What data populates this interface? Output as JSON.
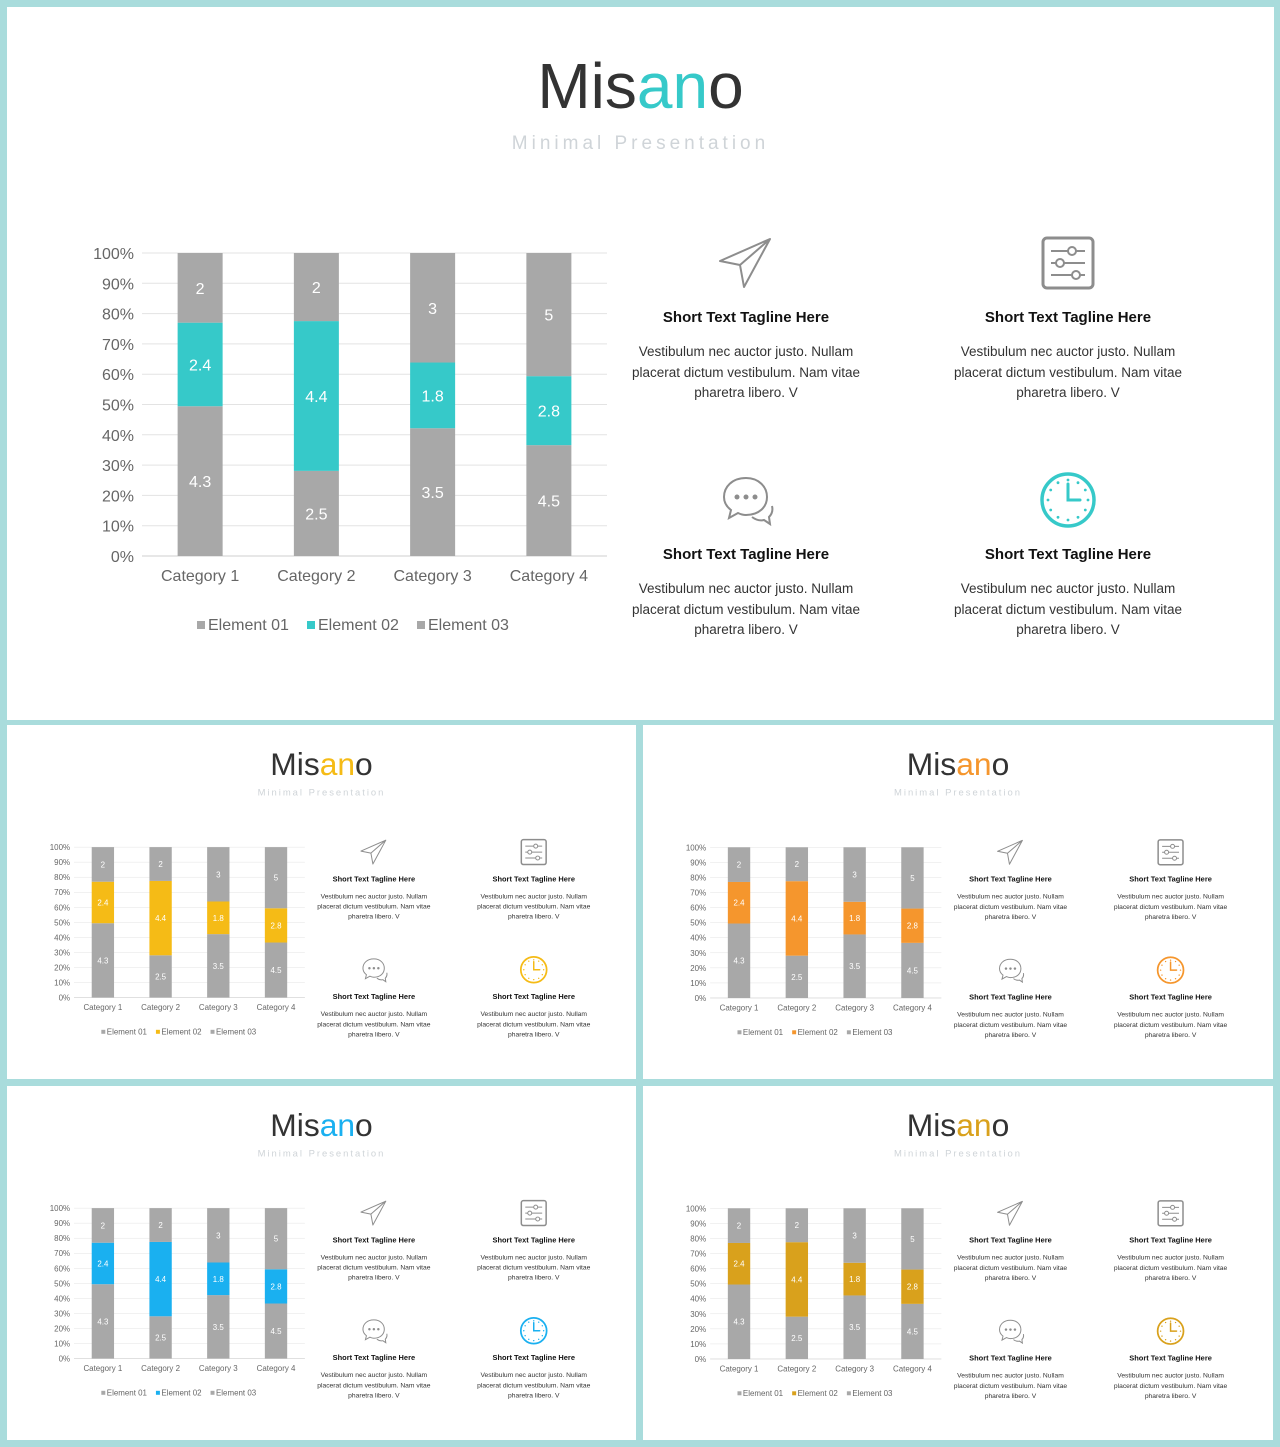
{
  "slides": [
    {
      "accent": "#36c9c9"
    },
    {
      "accent": "#f5bb16"
    },
    {
      "accent": "#f5962d"
    },
    {
      "accent": "#1ab0f0"
    },
    {
      "accent": "#d9a11c"
    }
  ],
  "brand": {
    "prefix": "Mis",
    "highlight": "an",
    "suffix": "o",
    "subtitle": "Minimal  Presentation"
  },
  "gray_color": "#a8a8a8",
  "features": [
    {
      "icon": "paper-plane-icon",
      "tagline": "Short Text Tagline Here",
      "desc": "Vestibulum nec auctor justo. Nullam placerat dictum vestibulum. Nam vitae pharetra libero. V"
    },
    {
      "icon": "sliders-icon",
      "tagline": "Short Text Tagline Here",
      "desc": "Vestibulum nec auctor justo. Nullam placerat dictum vestibulum. Nam vitae pharetra libero. V"
    },
    {
      "icon": "chat-icon",
      "tagline": "Short Text Tagline Here",
      "desc": "Vestibulum nec auctor justo. Nullam placerat dictum vestibulum. Nam vitae pharetra libero. V"
    },
    {
      "icon": "clock-icon",
      "tagline": "Short Text Tagline Here",
      "desc": "Vestibulum nec auctor justo. Nullam placerat dictum vestibulum. Nam vitae pharetra libero. V"
    }
  ],
  "chart_data": {
    "type": "bar",
    "stacked": "percent",
    "categories": [
      "Category 1",
      "Category 2",
      "Category 3",
      "Category 4"
    ],
    "series": [
      {
        "name": "Element 01",
        "values": [
          4.3,
          2.5,
          3.5,
          4.5
        ]
      },
      {
        "name": "Element 02",
        "values": [
          2.4,
          4.4,
          1.8,
          2.8
        ]
      },
      {
        "name": "Element 03",
        "values": [
          2,
          2,
          3,
          5
        ]
      }
    ],
    "yticks": [
      "0%",
      "10%",
      "20%",
      "30%",
      "40%",
      "50%",
      "60%",
      "70%",
      "80%",
      "90%",
      "100%"
    ],
    "ylim": [
      0,
      100
    ],
    "grid": true,
    "legend": "bottom"
  }
}
